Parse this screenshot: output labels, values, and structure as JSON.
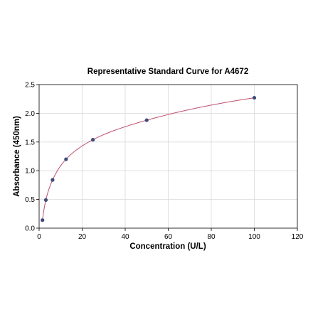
{
  "chart_data": {
    "type": "scatter",
    "title": "Representative Standard Curve for A4672",
    "xlabel": "Concentration (U/L)",
    "ylabel": "Absorbance (450nm)",
    "xlim": [
      0,
      120
    ],
    "ylim": [
      0,
      2.5
    ],
    "xticks": [
      0,
      20,
      40,
      60,
      80,
      100,
      120
    ],
    "yticks": [
      0.0,
      0.5,
      1.0,
      1.5,
      2.0,
      2.5
    ],
    "xtick_labels": [
      "0",
      "20",
      "40",
      "60",
      "80",
      "100",
      "120"
    ],
    "ytick_labels": [
      "0.0",
      "0.5",
      "1.0",
      "1.5",
      "2.0",
      "2.5"
    ],
    "grid": true,
    "legend": "none",
    "series": [
      {
        "x": [
          1.56,
          3.13,
          6.25,
          12.5,
          25,
          50,
          100
        ],
        "y": [
          0.14,
          0.49,
          0.84,
          1.2,
          1.54,
          1.88,
          2.27
        ],
        "marker_color": "#3d4a7a",
        "fit_color": "#c0506e"
      }
    ]
  }
}
